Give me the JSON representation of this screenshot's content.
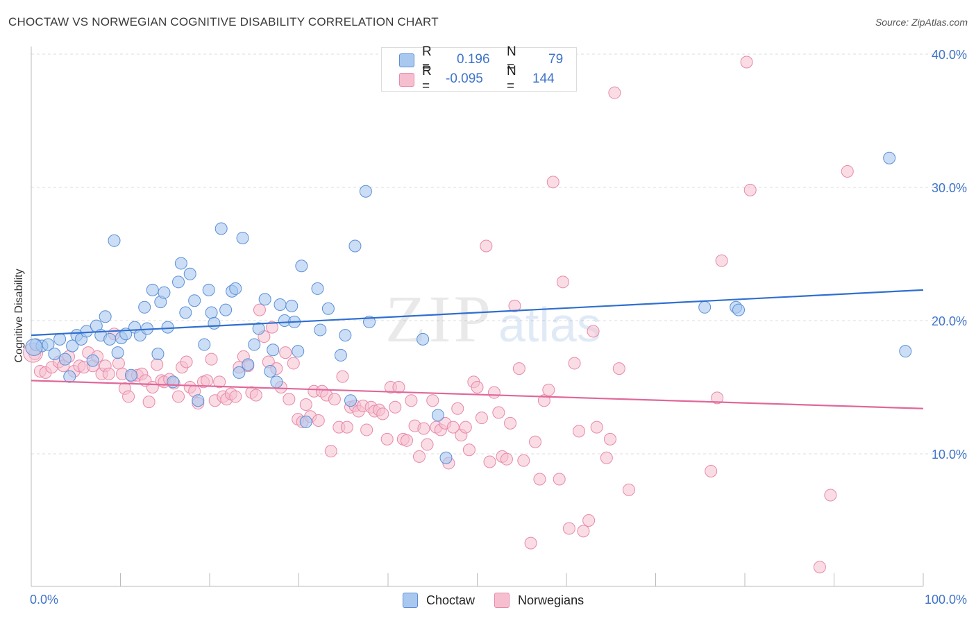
{
  "header": {
    "title": "CHOCTAW VS NORWEGIAN COGNITIVE DISABILITY CORRELATION CHART",
    "source": "Source: ZipAtlas.com"
  },
  "watermark": {
    "text_zip": "ZIP",
    "text_atlas": "atlas"
  },
  "legend": {
    "rows": [
      {
        "r_label": "R =",
        "r_value": "0.196",
        "n_label": "N =",
        "n_value": "79",
        "color": "#6fa0e0"
      },
      {
        "r_label": "R =",
        "r_value": "-0.095",
        "n_label": "N =",
        "n_value": "144",
        "color": "#ee9bb5"
      }
    ]
  },
  "bottom_legend": {
    "items": [
      "Choctaw",
      "Norwegians"
    ]
  },
  "colors": {
    "choctaw_fill": "#a9c8f0",
    "choctaw_stroke": "#5b8fd6",
    "choctaw_line": "#2f6fd0",
    "norwegian_fill": "#f6bfd0",
    "norwegian_stroke": "#e889a8",
    "norwegian_line": "#e0689a",
    "axis_label": "#3f74c9",
    "grid": "#dddddd"
  },
  "chart_data": {
    "type": "scatter",
    "title": "CHOCTAW VS NORWEGIAN COGNITIVE DISABILITY CORRELATION CHART",
    "xlabel": "",
    "ylabel": "Cognitive Disability",
    "xlim": [
      0,
      100
    ],
    "ylim": [
      0,
      42
    ],
    "x_tick_labels": [
      "0.0%",
      "100.0%"
    ],
    "y_ticks": [
      10,
      20,
      30,
      40
    ],
    "y_tick_labels": [
      "10.0%",
      "20.0%",
      "30.0%",
      "40.0%"
    ],
    "grid": "horizontal dashed",
    "legend_position": "top-center",
    "series": [
      {
        "name": "Choctaw",
        "r": 0.196,
        "n": 79,
        "trend": [
          [
            0,
            18.9
          ],
          [
            100,
            22.3
          ]
        ],
        "points": [
          [
            0.5,
            18.2
          ],
          [
            1.2,
            18.1
          ],
          [
            1.9,
            18.2
          ],
          [
            2.6,
            17.5
          ],
          [
            3.2,
            18.6
          ],
          [
            3.8,
            17.1
          ],
          [
            4.3,
            15.8
          ],
          [
            4.6,
            18.1
          ],
          [
            5.1,
            18.9
          ],
          [
            5.6,
            18.6
          ],
          [
            6.2,
            19.2
          ],
          [
            6.9,
            17.0
          ],
          [
            7.3,
            19.6
          ],
          [
            7.8,
            18.9
          ],
          [
            8.3,
            20.3
          ],
          [
            8.8,
            18.6
          ],
          [
            9.3,
            26.0
          ],
          [
            9.7,
            17.6
          ],
          [
            10.1,
            18.7
          ],
          [
            10.6,
            19.0
          ],
          [
            11.2,
            15.9
          ],
          [
            11.6,
            19.5
          ],
          [
            12.2,
            18.9
          ],
          [
            12.7,
            21.0
          ],
          [
            13.0,
            19.4
          ],
          [
            13.6,
            22.3
          ],
          [
            14.2,
            17.5
          ],
          [
            14.5,
            21.4
          ],
          [
            14.9,
            22.1
          ],
          [
            15.3,
            19.5
          ],
          [
            15.9,
            15.4
          ],
          [
            16.5,
            22.9
          ],
          [
            16.8,
            24.3
          ],
          [
            17.3,
            20.6
          ],
          [
            17.8,
            23.5
          ],
          [
            18.3,
            21.5
          ],
          [
            18.7,
            14.0
          ],
          [
            19.4,
            18.2
          ],
          [
            19.9,
            22.3
          ],
          [
            20.2,
            20.6
          ],
          [
            20.5,
            19.8
          ],
          [
            21.3,
            26.9
          ],
          [
            21.8,
            20.8
          ],
          [
            22.5,
            22.2
          ],
          [
            22.9,
            22.4
          ],
          [
            23.3,
            16.1
          ],
          [
            23.7,
            26.2
          ],
          [
            24.3,
            16.7
          ],
          [
            25.0,
            18.2
          ],
          [
            25.5,
            19.4
          ],
          [
            26.2,
            21.6
          ],
          [
            26.8,
            16.2
          ],
          [
            27.1,
            17.8
          ],
          [
            27.5,
            15.4
          ],
          [
            27.9,
            21.2
          ],
          [
            28.4,
            20.0
          ],
          [
            29.2,
            21.1
          ],
          [
            29.5,
            19.9
          ],
          [
            29.9,
            17.7
          ],
          [
            30.3,
            24.1
          ],
          [
            30.8,
            12.4
          ],
          [
            32.1,
            22.4
          ],
          [
            32.4,
            19.3
          ],
          [
            33.3,
            20.9
          ],
          [
            34.7,
            17.4
          ],
          [
            35.2,
            18.9
          ],
          [
            35.8,
            14.0
          ],
          [
            36.3,
            25.6
          ],
          [
            37.5,
            29.7
          ],
          [
            37.9,
            19.9
          ],
          [
            43.9,
            18.6
          ],
          [
            45.6,
            12.9
          ],
          [
            46.5,
            9.7
          ],
          [
            75.5,
            21.0
          ],
          [
            79.0,
            21.0
          ],
          [
            79.3,
            20.8
          ],
          [
            96.2,
            32.2
          ],
          [
            98.0,
            17.7
          ],
          [
            0.3,
            18.0
          ]
        ]
      },
      {
        "name": "Norwegians",
        "r": -0.095,
        "n": 144,
        "trend": [
          [
            0,
            15.5
          ],
          [
            100,
            13.4
          ]
        ],
        "points": [
          [
            0.4,
            17.5
          ],
          [
            1.0,
            16.2
          ],
          [
            1.6,
            16.1
          ],
          [
            2.3,
            16.5
          ],
          [
            3.1,
            16.9
          ],
          [
            3.6,
            16.6
          ],
          [
            4.2,
            17.3
          ],
          [
            4.8,
            16.2
          ],
          [
            5.4,
            16.6
          ],
          [
            5.9,
            16.5
          ],
          [
            6.4,
            17.6
          ],
          [
            6.9,
            16.6
          ],
          [
            7.4,
            17.3
          ],
          [
            7.9,
            16.0
          ],
          [
            8.3,
            16.6
          ],
          [
            8.7,
            16.0
          ],
          [
            9.3,
            19.0
          ],
          [
            9.8,
            16.8
          ],
          [
            10.2,
            16.0
          ],
          [
            10.5,
            14.9
          ],
          [
            10.9,
            14.3
          ],
          [
            11.3,
            15.8
          ],
          [
            11.9,
            15.9
          ],
          [
            12.4,
            16.0
          ],
          [
            12.8,
            15.5
          ],
          [
            13.2,
            13.9
          ],
          [
            13.6,
            15.0
          ],
          [
            14.1,
            16.7
          ],
          [
            14.6,
            15.5
          ],
          [
            14.9,
            15.4
          ],
          [
            15.5,
            15.6
          ],
          [
            16.0,
            15.3
          ],
          [
            16.5,
            14.3
          ],
          [
            16.9,
            16.5
          ],
          [
            17.4,
            16.9
          ],
          [
            17.8,
            15.0
          ],
          [
            18.3,
            14.7
          ],
          [
            18.7,
            13.8
          ],
          [
            19.3,
            15.4
          ],
          [
            19.7,
            15.5
          ],
          [
            20.2,
            17.1
          ],
          [
            20.6,
            14.0
          ],
          [
            21.1,
            15.4
          ],
          [
            21.5,
            14.3
          ],
          [
            21.9,
            14.1
          ],
          [
            22.4,
            14.5
          ],
          [
            22.9,
            14.3
          ],
          [
            23.3,
            16.5
          ],
          [
            23.8,
            17.3
          ],
          [
            24.3,
            16.6
          ],
          [
            24.7,
            14.6
          ],
          [
            25.2,
            14.4
          ],
          [
            25.6,
            20.8
          ],
          [
            26.1,
            18.8
          ],
          [
            26.6,
            16.9
          ],
          [
            27.0,
            19.5
          ],
          [
            27.5,
            16.4
          ],
          [
            28.0,
            15.0
          ],
          [
            28.5,
            17.6
          ],
          [
            28.9,
            14.1
          ],
          [
            29.4,
            16.8
          ],
          [
            29.9,
            12.6
          ],
          [
            30.4,
            12.4
          ],
          [
            30.8,
            13.7
          ],
          [
            31.3,
            12.8
          ],
          [
            31.7,
            14.7
          ],
          [
            32.2,
            12.5
          ],
          [
            32.6,
            14.7
          ],
          [
            33.1,
            14.4
          ],
          [
            33.6,
            10.2
          ],
          [
            34.0,
            14.1
          ],
          [
            34.5,
            12.0
          ],
          [
            34.9,
            15.8
          ],
          [
            35.4,
            12.0
          ],
          [
            35.8,
            13.5
          ],
          [
            36.3,
            13.6
          ],
          [
            36.7,
            13.2
          ],
          [
            37.2,
            13.6
          ],
          [
            37.6,
            11.8
          ],
          [
            38.1,
            13.5
          ],
          [
            38.5,
            13.2
          ],
          [
            39.0,
            13.3
          ],
          [
            39.4,
            13.0
          ],
          [
            39.9,
            11.1
          ],
          [
            40.3,
            15.0
          ],
          [
            40.8,
            13.5
          ],
          [
            41.2,
            15.0
          ],
          [
            41.7,
            11.1
          ],
          [
            42.1,
            11.0
          ],
          [
            42.6,
            14.0
          ],
          [
            43.0,
            12.1
          ],
          [
            43.5,
            9.8
          ],
          [
            44.0,
            11.9
          ],
          [
            44.4,
            10.7
          ],
          [
            45.0,
            14.0
          ],
          [
            45.4,
            12.0
          ],
          [
            45.9,
            11.8
          ],
          [
            46.4,
            12.3
          ],
          [
            46.8,
            9.3
          ],
          [
            47.3,
            12.0
          ],
          [
            47.8,
            13.4
          ],
          [
            48.2,
            11.4
          ],
          [
            48.7,
            12.0
          ],
          [
            49.1,
            10.3
          ],
          [
            49.6,
            15.4
          ],
          [
            50.0,
            15.0
          ],
          [
            50.5,
            12.7
          ],
          [
            51.0,
            25.6
          ],
          [
            51.4,
            9.4
          ],
          [
            51.9,
            14.6
          ],
          [
            52.4,
            13.1
          ],
          [
            52.8,
            9.8
          ],
          [
            53.3,
            9.6
          ],
          [
            53.7,
            12.3
          ],
          [
            54.2,
            21.1
          ],
          [
            54.7,
            16.4
          ],
          [
            55.2,
            9.5
          ],
          [
            56.0,
            3.3
          ],
          [
            56.5,
            10.9
          ],
          [
            57.0,
            8.1
          ],
          [
            57.5,
            14.0
          ],
          [
            58.0,
            14.8
          ],
          [
            58.5,
            30.4
          ],
          [
            59.2,
            8.1
          ],
          [
            59.6,
            22.9
          ],
          [
            60.3,
            4.4
          ],
          [
            60.9,
            16.8
          ],
          [
            61.4,
            11.7
          ],
          [
            61.9,
            4.2
          ],
          [
            62.5,
            5.0
          ],
          [
            63.0,
            19.2
          ],
          [
            63.4,
            12.0
          ],
          [
            64.5,
            9.7
          ],
          [
            64.9,
            11.1
          ],
          [
            65.4,
            37.1
          ],
          [
            65.9,
            16.4
          ],
          [
            67.0,
            7.3
          ],
          [
            76.2,
            8.7
          ],
          [
            76.9,
            14.2
          ],
          [
            77.4,
            24.5
          ],
          [
            80.2,
            39.4
          ],
          [
            80.6,
            29.8
          ],
          [
            88.4,
            1.5
          ],
          [
            89.6,
            6.9
          ],
          [
            91.5,
            31.2
          ],
          [
            0.2,
            17.6
          ]
        ]
      }
    ]
  }
}
